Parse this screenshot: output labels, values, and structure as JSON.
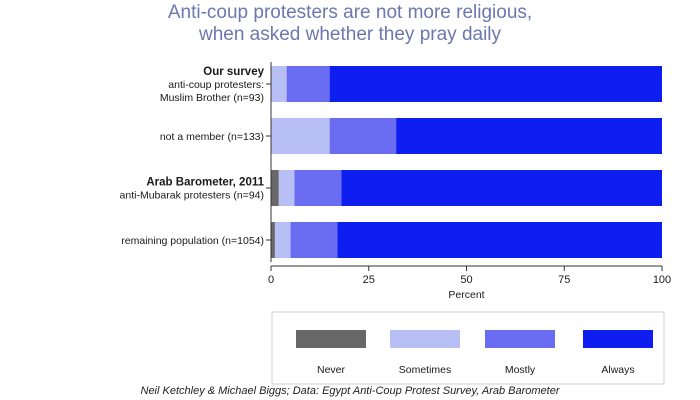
{
  "chart_data": {
    "type": "bar",
    "orientation": "horizontal",
    "stacked": true,
    "title": [
      "Anti-coup protesters are not more religious,",
      "when asked whether they pray daily"
    ],
    "xlabel": "Percent",
    "xlim": [
      0,
      100
    ],
    "xticks": [
      0,
      25,
      50,
      75,
      100
    ],
    "grid": false,
    "legend_placement": "bottom",
    "categories": [
      {
        "group": "Our survey",
        "label": [
          "anti-coup protesters:",
          "Muslim Brother (n=93)"
        ]
      },
      {
        "group": "",
        "label": [
          "not a member (n=133)"
        ]
      },
      {
        "group": "Arab Barometer, 2011",
        "label": [
          "anti-Mubarak protesters (n=94)"
        ]
      },
      {
        "group": "",
        "label": [
          "remaining population (n=1054)"
        ]
      }
    ],
    "series": [
      {
        "name": "Never",
        "color": "#686868",
        "values": [
          0,
          0,
          2,
          1
        ]
      },
      {
        "name": "Sometimes",
        "color": "#b8bff5",
        "values": [
          4,
          15,
          4,
          4
        ]
      },
      {
        "name": "Mostly",
        "color": "#6a6cf2",
        "values": [
          11,
          17,
          12,
          12
        ]
      },
      {
        "name": "Always",
        "color": "#0e1ef0",
        "values": [
          85,
          68,
          82,
          83
        ]
      }
    ],
    "source": "Neil Ketchley & Michael Biggs; Data: Egypt Anti-Coup Protest Survey, Arab Barometer"
  }
}
